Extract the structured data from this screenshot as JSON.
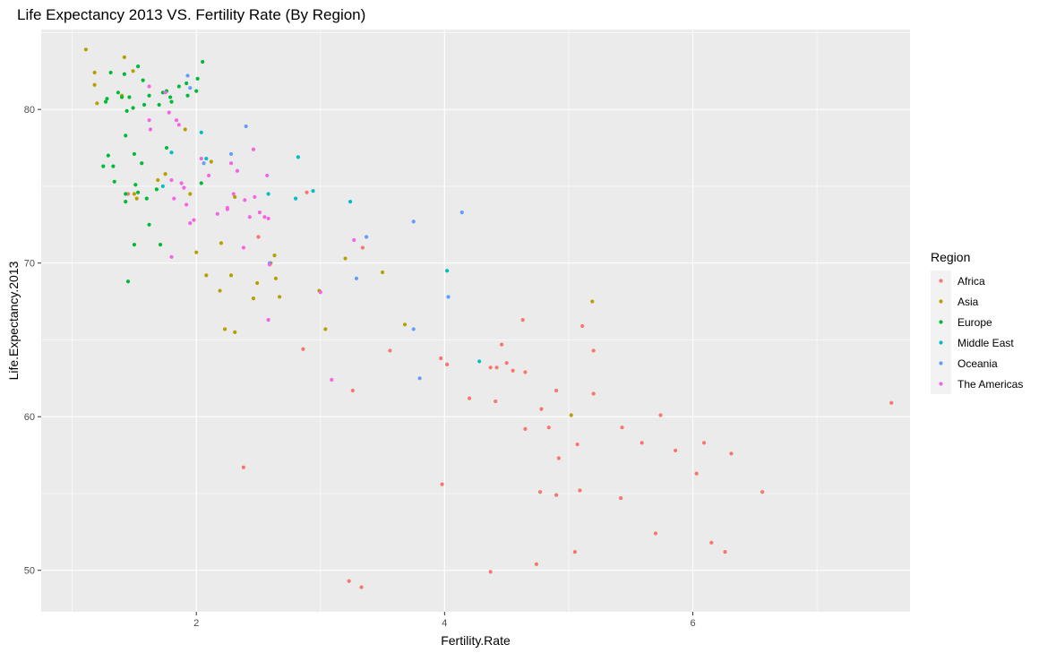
{
  "chart_data": {
    "type": "scatter",
    "title": "Life Expectancy 2013 VS. Fertility Rate (By Region)",
    "xlabel": "Fertility.Rate",
    "ylabel": "Life.Expectancy.2013",
    "xlim": [
      0.75,
      7.75
    ],
    "ylim": [
      47.3,
      85.2
    ],
    "x_ticks": [
      2,
      4,
      6
    ],
    "y_ticks": [
      50,
      60,
      70,
      80
    ],
    "grid": true,
    "legend": {
      "title": "Region",
      "position": "right"
    },
    "series": [
      {
        "name": "Africa",
        "color": "#F8766D",
        "points": [
          [
            1.45,
            74.5
          ],
          [
            2.38,
            56.7
          ],
          [
            2.5,
            71.7
          ],
          [
            2.86,
            64.4
          ],
          [
            2.89,
            74.6
          ],
          [
            3.23,
            49.3
          ],
          [
            3.26,
            61.7
          ],
          [
            3.33,
            48.9
          ],
          [
            3.34,
            71.0
          ],
          [
            3.56,
            64.3
          ],
          [
            3.97,
            63.8
          ],
          [
            3.98,
            55.6
          ],
          [
            4.02,
            63.4
          ],
          [
            4.2,
            61.2
          ],
          [
            4.37,
            49.9
          ],
          [
            4.37,
            63.2
          ],
          [
            4.41,
            61.0
          ],
          [
            4.42,
            63.2
          ],
          [
            4.46,
            64.7
          ],
          [
            4.5,
            63.5
          ],
          [
            4.55,
            63.0
          ],
          [
            4.63,
            66.3
          ],
          [
            4.65,
            62.9
          ],
          [
            4.65,
            59.2
          ],
          [
            4.74,
            50.4
          ],
          [
            4.77,
            55.1
          ],
          [
            4.78,
            60.5
          ],
          [
            4.84,
            59.3
          ],
          [
            4.9,
            54.9
          ],
          [
            4.9,
            61.7
          ],
          [
            4.92,
            57.3
          ],
          [
            5.05,
            51.2
          ],
          [
            5.07,
            58.2
          ],
          [
            5.09,
            55.2
          ],
          [
            5.11,
            65.9
          ],
          [
            5.2,
            64.3
          ],
          [
            5.2,
            61.5
          ],
          [
            5.42,
            54.7
          ],
          [
            5.43,
            59.3
          ],
          [
            5.59,
            58.3
          ],
          [
            5.7,
            52.4
          ],
          [
            5.74,
            60.1
          ],
          [
            5.86,
            57.8
          ],
          [
            6.03,
            56.3
          ],
          [
            6.09,
            58.3
          ],
          [
            6.15,
            51.8
          ],
          [
            6.26,
            51.2
          ],
          [
            6.31,
            57.6
          ],
          [
            6.56,
            55.1
          ],
          [
            7.6,
            60.9
          ]
        ]
      },
      {
        "name": "Asia",
        "color": "#B79F00",
        "points": [
          [
            1.11,
            83.9
          ],
          [
            1.18,
            82.4
          ],
          [
            1.18,
            81.6
          ],
          [
            1.2,
            80.4
          ],
          [
            1.4,
            80.9
          ],
          [
            1.42,
            83.4
          ],
          [
            1.49,
            82.5
          ],
          [
            1.5,
            74.5
          ],
          [
            1.52,
            74.2
          ],
          [
            1.69,
            75.4
          ],
          [
            1.75,
            75.8
          ],
          [
            1.91,
            78.7
          ],
          [
            1.95,
            74.5
          ],
          [
            2.0,
            70.7
          ],
          [
            2.08,
            69.2
          ],
          [
            2.12,
            76.6
          ],
          [
            2.19,
            68.2
          ],
          [
            2.2,
            71.3
          ],
          [
            2.23,
            65.7
          ],
          [
            2.28,
            69.2
          ],
          [
            2.31,
            65.5
          ],
          [
            2.31,
            74.3
          ],
          [
            2.46,
            67.7
          ],
          [
            2.49,
            68.7
          ],
          [
            2.6,
            70.0
          ],
          [
            2.63,
            70.5
          ],
          [
            2.64,
            69.0
          ],
          [
            2.67,
            67.8
          ],
          [
            2.99,
            68.2
          ],
          [
            3.04,
            65.7
          ],
          [
            3.2,
            70.3
          ],
          [
            3.5,
            69.4
          ],
          [
            3.68,
            66.0
          ],
          [
            5.02,
            60.1
          ],
          [
            5.19,
            67.5
          ]
        ]
      },
      {
        "name": "Europe",
        "color": "#00BA38",
        "points": [
          [
            1.25,
            76.3
          ],
          [
            1.27,
            80.5
          ],
          [
            1.28,
            80.7
          ],
          [
            1.29,
            77.0
          ],
          [
            1.31,
            82.4
          ],
          [
            1.33,
            76.3
          ],
          [
            1.34,
            75.3
          ],
          [
            1.37,
            81.1
          ],
          [
            1.4,
            80.8
          ],
          [
            1.42,
            82.3
          ],
          [
            1.43,
            78.3
          ],
          [
            1.43,
            74.5
          ],
          [
            1.43,
            74.0
          ],
          [
            1.44,
            79.9
          ],
          [
            1.45,
            68.8
          ],
          [
            1.46,
            80.8
          ],
          [
            1.49,
            80.1
          ],
          [
            1.5,
            71.2
          ],
          [
            1.5,
            77.1
          ],
          [
            1.51,
            75.1
          ],
          [
            1.53,
            74.6
          ],
          [
            1.53,
            82.8
          ],
          [
            1.56,
            76.5
          ],
          [
            1.57,
            81.9
          ],
          [
            1.58,
            80.3
          ],
          [
            1.6,
            74.2
          ],
          [
            1.62,
            72.5
          ],
          [
            1.62,
            80.9
          ],
          [
            1.68,
            74.8
          ],
          [
            1.7,
            80.3
          ],
          [
            1.71,
            71.2
          ],
          [
            1.73,
            81.1
          ],
          [
            1.76,
            77.5
          ],
          [
            1.76,
            81.2
          ],
          [
            1.79,
            80.8
          ],
          [
            1.8,
            80.5
          ],
          [
            1.86,
            81.5
          ],
          [
            1.92,
            81.7
          ],
          [
            1.93,
            80.9
          ],
          [
            2.0,
            81.2
          ],
          [
            2.01,
            82.0
          ],
          [
            2.04,
            75.2
          ],
          [
            2.05,
            83.1
          ]
        ]
      },
      {
        "name": "Middle East",
        "color": "#00BFC4",
        "points": [
          [
            1.73,
            75.0
          ],
          [
            1.8,
            77.2
          ],
          [
            2.04,
            78.5
          ],
          [
            2.08,
            76.8
          ],
          [
            2.58,
            74.5
          ],
          [
            2.8,
            74.2
          ],
          [
            2.82,
            76.9
          ],
          [
            2.94,
            74.7
          ],
          [
            3.24,
            74.0
          ],
          [
            4.02,
            69.5
          ],
          [
            4.28,
            63.6
          ]
        ]
      },
      {
        "name": "Oceania",
        "color": "#619CFF",
        "points": [
          [
            1.93,
            82.2
          ],
          [
            1.95,
            81.4
          ],
          [
            2.06,
            76.5
          ],
          [
            2.28,
            77.1
          ],
          [
            2.4,
            78.9
          ],
          [
            2.59,
            70.0
          ],
          [
            3.29,
            69.0
          ],
          [
            3.37,
            71.7
          ],
          [
            3.75,
            65.7
          ],
          [
            3.75,
            72.7
          ],
          [
            3.8,
            62.5
          ],
          [
            4.03,
            67.8
          ],
          [
            4.14,
            73.3
          ]
        ]
      },
      {
        "name": "The Americas",
        "color": "#F564E3",
        "points": [
          [
            1.62,
            81.5
          ],
          [
            1.62,
            79.3
          ],
          [
            1.63,
            78.7
          ],
          [
            1.75,
            81.1
          ],
          [
            1.78,
            79.8
          ],
          [
            1.8,
            75.4
          ],
          [
            1.8,
            70.4
          ],
          [
            1.82,
            74.2
          ],
          [
            1.84,
            79.3
          ],
          [
            1.86,
            79.0
          ],
          [
            1.88,
            75.2
          ],
          [
            1.9,
            74.9
          ],
          [
            1.92,
            73.8
          ],
          [
            1.95,
            72.6
          ],
          [
            1.98,
            72.8
          ],
          [
            2.04,
            76.8
          ],
          [
            2.1,
            75.7
          ],
          [
            2.17,
            73.2
          ],
          [
            2.25,
            73.6
          ],
          [
            2.25,
            73.5
          ],
          [
            2.28,
            76.5
          ],
          [
            2.3,
            74.5
          ],
          [
            2.33,
            76.0
          ],
          [
            2.38,
            71.0
          ],
          [
            2.39,
            74.1
          ],
          [
            2.43,
            73.0
          ],
          [
            2.46,
            77.4
          ],
          [
            2.47,
            74.3
          ],
          [
            2.51,
            73.3
          ],
          [
            2.55,
            73.0
          ],
          [
            2.57,
            75.7
          ],
          [
            2.58,
            72.9
          ],
          [
            2.58,
            66.3
          ],
          [
            2.59,
            69.9
          ],
          [
            3.0,
            68.1
          ],
          [
            3.09,
            62.4
          ],
          [
            3.27,
            71.5
          ]
        ]
      }
    ]
  }
}
